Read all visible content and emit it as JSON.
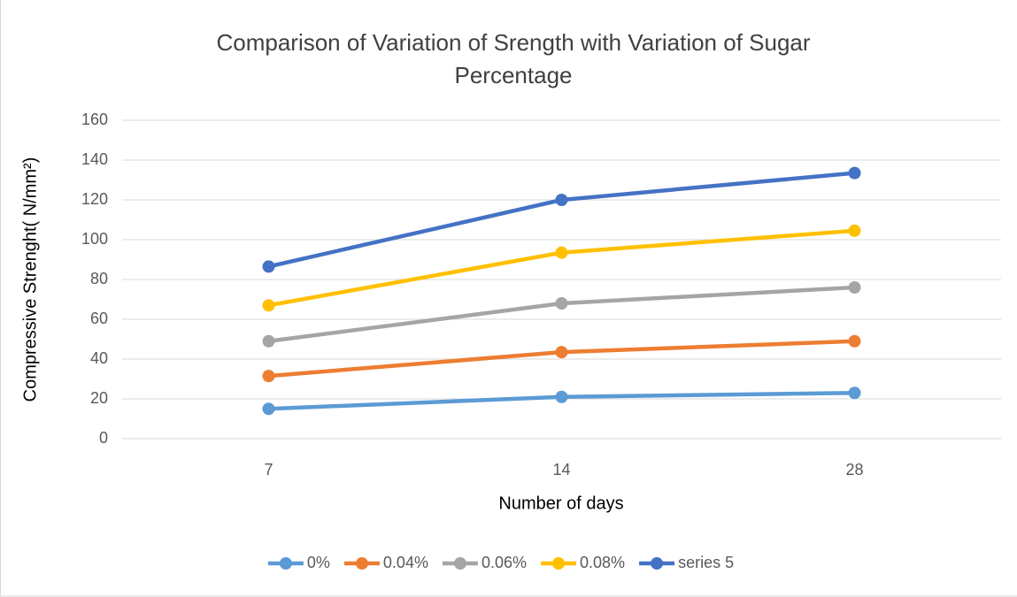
{
  "chart_data": {
    "type": "line",
    "title": "Comparison of Variation of Srength with Variation of Sugar Percentage",
    "x_label": "Number of days",
    "y_label": "Compressive Strenght( N/mm²)",
    "categories": [
      "7",
      "14",
      "28"
    ],
    "series": [
      {
        "name": "0%",
        "color": "#5b9bd5",
        "values": [
          15,
          21,
          23
        ]
      },
      {
        "name": "0.04%",
        "color": "#ed7d31",
        "values": [
          31.5,
          43.5,
          49
        ]
      },
      {
        "name": "0.06%",
        "color": "#a5a5a5",
        "values": [
          49,
          68,
          76
        ]
      },
      {
        "name": "0.08%",
        "color": "#ffc000",
        "values": [
          67,
          93.5,
          104.5
        ]
      },
      {
        "name": "series 5",
        "color": "#4472c4",
        "values": [
          86.5,
          120,
          133.5
        ]
      }
    ],
    "ylim": [
      0,
      160
    ],
    "yticks": [
      0,
      20,
      40,
      60,
      80,
      100,
      120,
      140,
      160
    ],
    "grid": true,
    "legend": "bottom"
  }
}
